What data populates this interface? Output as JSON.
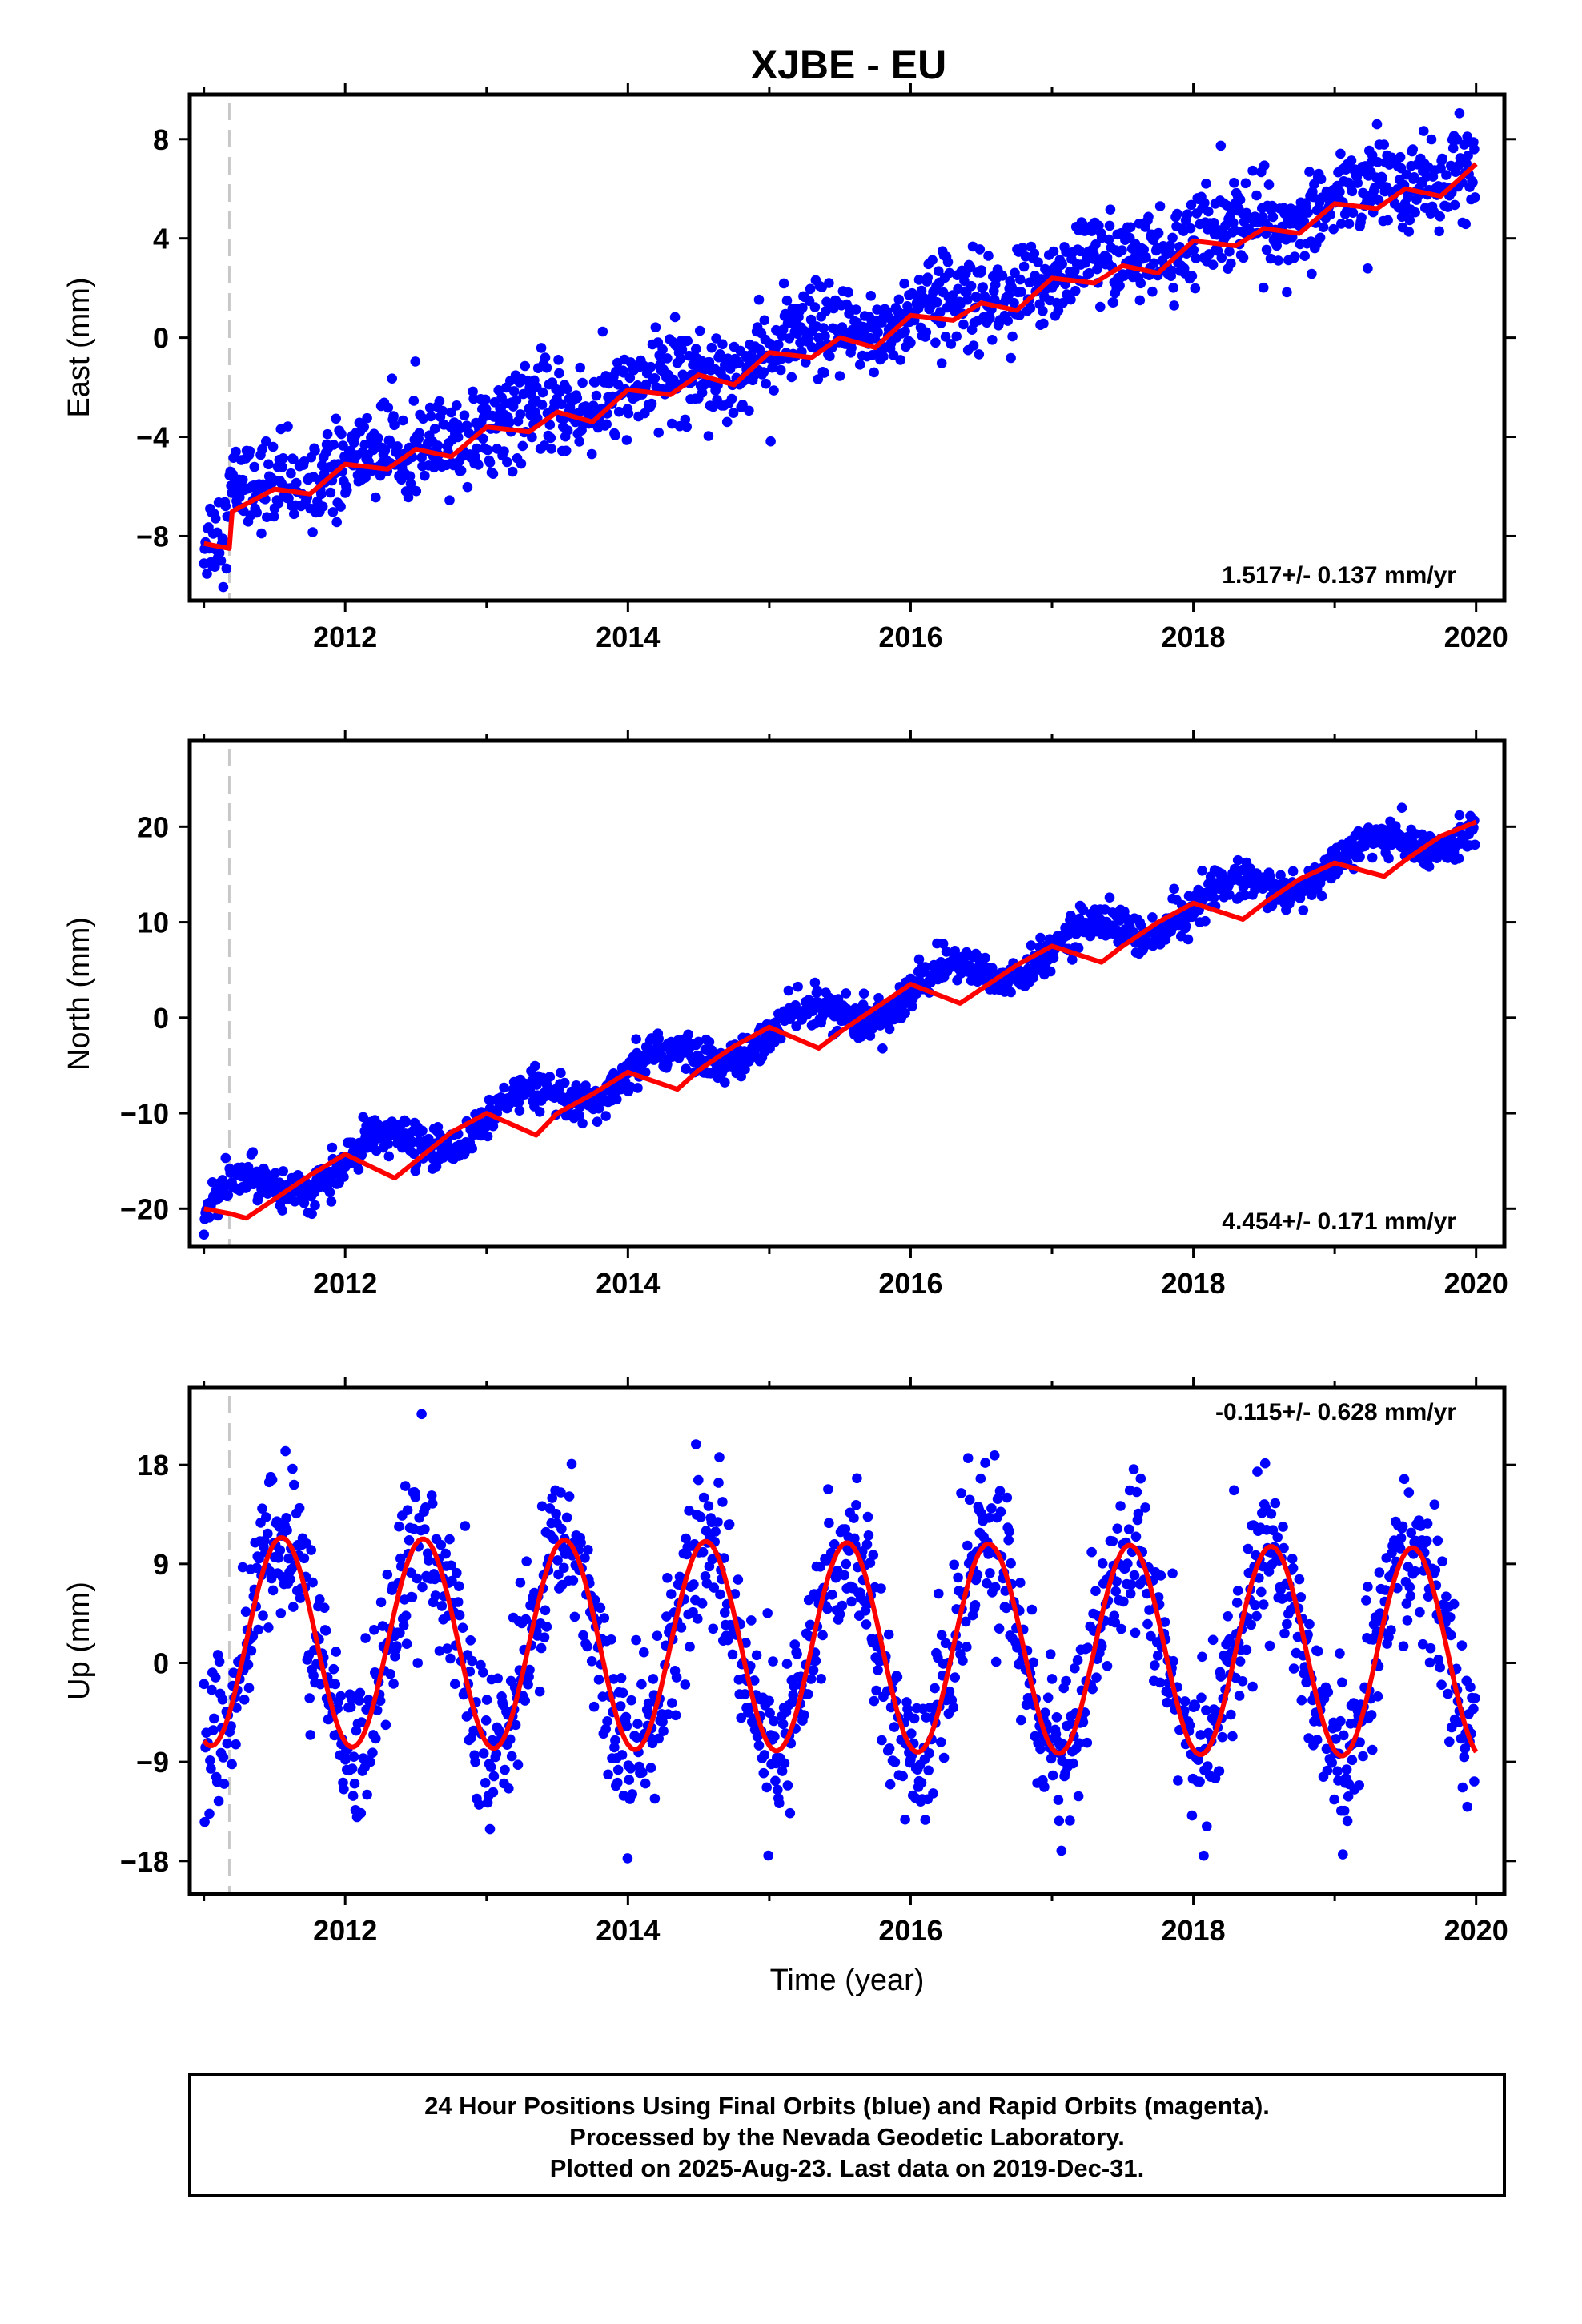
{
  "title": "XJBE - EU",
  "colors": {
    "points": "#0000ff",
    "fit": "#ff0000",
    "frame": "#000000",
    "dashed": "#c8c8c8"
  },
  "chart_data": [
    {
      "type": "scatter",
      "ylabel": "East (mm)",
      "xlim": [
        2010.9,
        2020.2
      ],
      "ylim": [
        -10.6,
        9.8
      ],
      "x_ticks": [
        "2012",
        "2014",
        "2016",
        "2018",
        "2020"
      ],
      "y_ticks": [
        "-8",
        "-4",
        "0",
        "4",
        "8"
      ],
      "rate_text": "1.517+/- 0.137 mm/yr",
      "event_line_x": 2011.18,
      "trend": {
        "slope": 1.517,
        "intercept_2015": -0.6,
        "annual_amplitude": 0.35,
        "noise": 0.9
      },
      "fit_points": [
        [
          2011.0,
          -8.3
        ],
        [
          2011.18,
          -8.5
        ],
        [
          2011.2,
          -7.0
        ],
        [
          2011.5,
          -6.1
        ],
        [
          2011.75,
          -6.3
        ],
        [
          2012.0,
          -5.1
        ],
        [
          2012.3,
          -5.3
        ],
        [
          2012.5,
          -4.5
        ],
        [
          2012.75,
          -4.8
        ],
        [
          2013.0,
          -3.6
        ],
        [
          2013.3,
          -3.8
        ],
        [
          2013.5,
          -3.0
        ],
        [
          2013.75,
          -3.4
        ],
        [
          2014.0,
          -2.1
        ],
        [
          2014.3,
          -2.3
        ],
        [
          2014.5,
          -1.5
        ],
        [
          2014.75,
          -1.9
        ],
        [
          2015.0,
          -0.6
        ],
        [
          2015.3,
          -0.8
        ],
        [
          2015.5,
          0.0
        ],
        [
          2015.75,
          -0.4
        ],
        [
          2016.0,
          0.9
        ],
        [
          2016.3,
          0.7
        ],
        [
          2016.5,
          1.4
        ],
        [
          2016.75,
          1.1
        ],
        [
          2017.0,
          2.4
        ],
        [
          2017.3,
          2.2
        ],
        [
          2017.5,
          2.9
        ],
        [
          2017.75,
          2.6
        ],
        [
          2018.0,
          3.9
        ],
        [
          2018.3,
          3.7
        ],
        [
          2018.5,
          4.4
        ],
        [
          2018.75,
          4.2
        ],
        [
          2019.0,
          5.4
        ],
        [
          2019.3,
          5.2
        ],
        [
          2019.5,
          6.0
        ],
        [
          2019.75,
          5.7
        ],
        [
          2020.0,
          7.0
        ]
      ]
    },
    {
      "type": "scatter",
      "ylabel": "North (mm)",
      "xlim": [
        2010.9,
        2020.2
      ],
      "ylim": [
        -24,
        29
      ],
      "x_ticks": [
        "2012",
        "2014",
        "2016",
        "2018",
        "2020"
      ],
      "y_ticks": [
        "-20",
        "-10",
        "0",
        "10",
        "20"
      ],
      "rate_text": "4.454+/- 0.171 mm/yr",
      "event_line_x": 2011.18,
      "trend": {
        "slope": 4.454,
        "intercept_2015": -1.8,
        "annual_amplitude": 1.7,
        "noise": 1.0
      },
      "fit_points": [
        [
          2011.0,
          -20.0
        ],
        [
          2011.18,
          -20.5
        ],
        [
          2011.3,
          -21.0
        ],
        [
          2011.5,
          -19.0
        ],
        [
          2011.75,
          -16.5
        ],
        [
          2012.0,
          -14.3
        ],
        [
          2012.35,
          -16.8
        ],
        [
          2012.5,
          -15.0
        ],
        [
          2012.75,
          -12.0
        ],
        [
          2013.0,
          -10.0
        ],
        [
          2013.35,
          -12.3
        ],
        [
          2013.5,
          -10.0
        ],
        [
          2013.75,
          -8.0
        ],
        [
          2014.0,
          -5.7
        ],
        [
          2014.35,
          -7.5
        ],
        [
          2014.5,
          -5.5
        ],
        [
          2014.75,
          -3.0
        ],
        [
          2015.0,
          -1.0
        ],
        [
          2015.35,
          -3.2
        ],
        [
          2015.5,
          -1.5
        ],
        [
          2015.75,
          1.0
        ],
        [
          2016.0,
          3.5
        ],
        [
          2016.35,
          1.5
        ],
        [
          2016.5,
          3.0
        ],
        [
          2016.75,
          5.5
        ],
        [
          2017.0,
          7.5
        ],
        [
          2017.35,
          5.8
        ],
        [
          2017.5,
          7.5
        ],
        [
          2017.75,
          10.0
        ],
        [
          2018.0,
          12.0
        ],
        [
          2018.35,
          10.3
        ],
        [
          2018.5,
          12.0
        ],
        [
          2018.75,
          14.5
        ],
        [
          2019.0,
          16.2
        ],
        [
          2019.35,
          14.8
        ],
        [
          2019.5,
          16.5
        ],
        [
          2019.75,
          19.0
        ],
        [
          2020.0,
          20.5
        ]
      ]
    },
    {
      "type": "scatter",
      "ylabel": "Up (mm)",
      "xlim": [
        2010.9,
        2020.2
      ],
      "ylim": [
        -21,
        25
      ],
      "x_ticks": [
        "2012",
        "2014",
        "2016",
        "2018",
        "2020"
      ],
      "y_ticks": [
        "18",
        "9",
        "0",
        "-9",
        "-18"
      ],
      "xlabel": "Time (year)",
      "rate_text": "-0.115+/- 0.628 mm/yr",
      "event_line_x": 2011.18,
      "trend": {
        "slope": -0.115,
        "intercept_2015": 1.4,
        "annual_amplitude": 9.5,
        "phase_peak": 0.55,
        "noise": 3.6
      },
      "fit_description_values": {
        "peak": 11,
        "trough": -8
      }
    }
  ],
  "caption": {
    "line1": "24 Hour Positions Using Final Orbits (blue) and Rapid Orbits (magenta).",
    "line2": "Processed by the Nevada Geodetic Laboratory.",
    "line3": "Plotted on 2025-Aug-23. Last data on 2019-Dec-31."
  }
}
